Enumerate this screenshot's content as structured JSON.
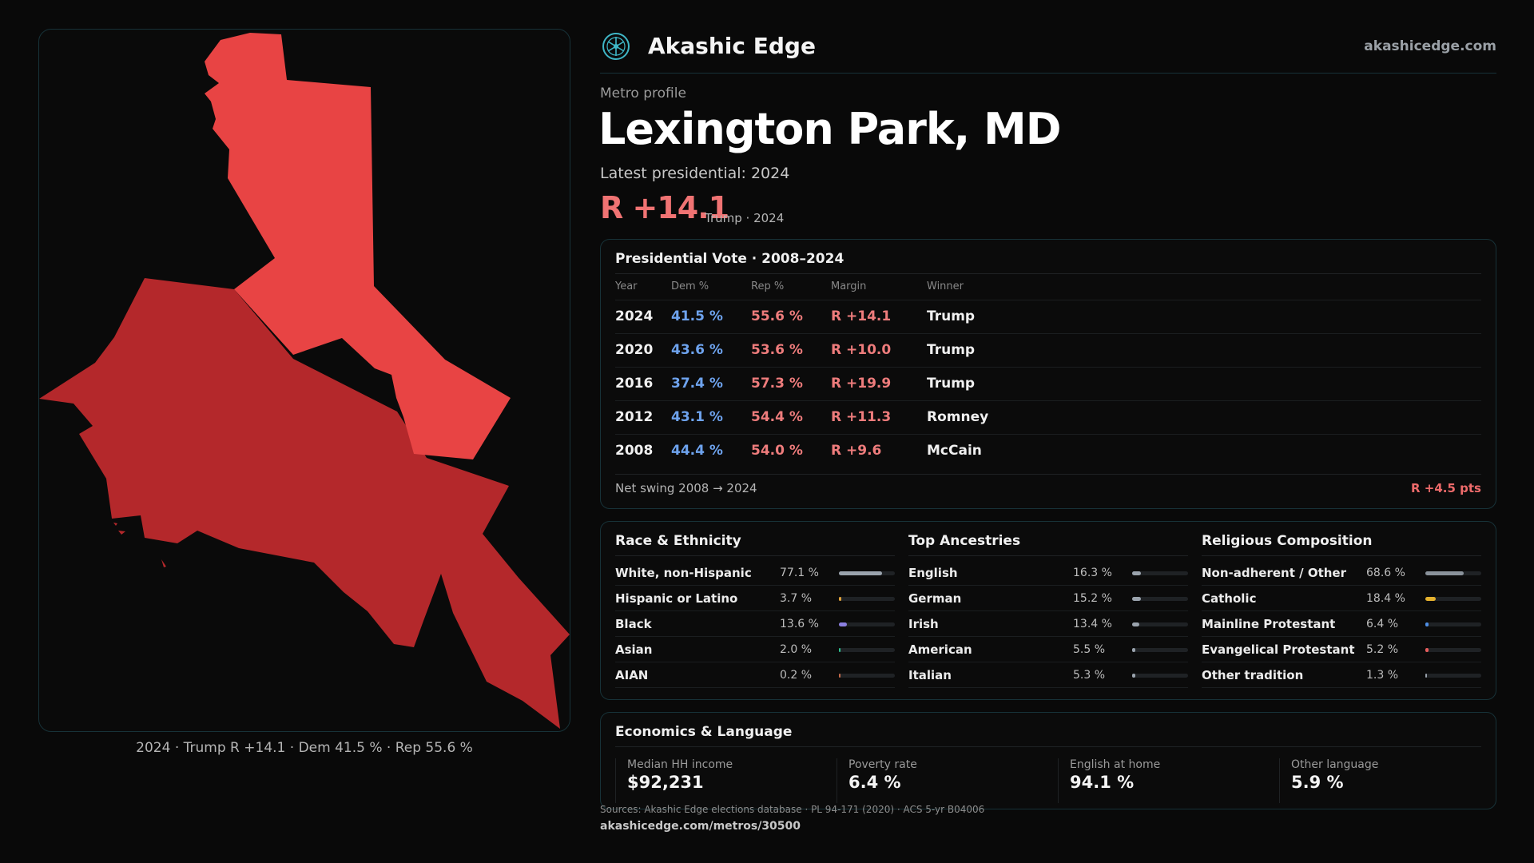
{
  "colors": {
    "background": "#090909",
    "border": "#173238",
    "dem": "#6ea3ee",
    "rep": "#ee7c7c",
    "map_light": "#e84444",
    "map_dark": "#b4282b"
  },
  "header": {
    "logo_icon": "akashic-edge-logo-icon",
    "brand": "Akashic Edge",
    "site": "akashicedge.com"
  },
  "profile": {
    "eyebrow": "Metro profile",
    "title": "Lexington Park, MD",
    "latest": "Latest presidential: 2024",
    "margin": "R +14.1",
    "margin_sub": "Trump · 2024"
  },
  "map": {
    "caption": "2024 · Trump R +14.1 · Dem 41.5 % · Rep 55.6 %"
  },
  "vote": {
    "title": "Presidential Vote · 2008–2024",
    "headers": {
      "year": "Year",
      "dem": "Dem %",
      "rep": "Rep %",
      "margin": "Margin",
      "winner": "Winner"
    },
    "rows": [
      {
        "year": "2024",
        "dem": "41.5 %",
        "rep": "55.6 %",
        "margin": "R +14.1",
        "winner": "Trump"
      },
      {
        "year": "2020",
        "dem": "43.6 %",
        "rep": "53.6 %",
        "margin": "R +10.0",
        "winner": "Trump"
      },
      {
        "year": "2016",
        "dem": "37.4 %",
        "rep": "57.3 %",
        "margin": "R +19.9",
        "winner": "Trump"
      },
      {
        "year": "2012",
        "dem": "43.1 %",
        "rep": "54.4 %",
        "margin": "R +11.3",
        "winner": "Romney"
      },
      {
        "year": "2008",
        "dem": "44.4 %",
        "rep": "54.0 %",
        "margin": "R +9.6",
        "winner": "McCain"
      }
    ],
    "swing_label": "Net swing 2008 → 2024",
    "swing_value": "R +4.5 pts"
  },
  "demographics": {
    "race": {
      "title": "Race & Ethnicity",
      "items": [
        {
          "label": "White, non-Hispanic",
          "value": "77.1 %",
          "pct": 77.1,
          "color": "#9aa3ad"
        },
        {
          "label": "Hispanic or Latino",
          "value": "3.7 %",
          "pct": 3.7,
          "color": "#e0a23a"
        },
        {
          "label": "Black",
          "value": "13.6 %",
          "pct": 13.6,
          "color": "#8b7fe0"
        },
        {
          "label": "Asian",
          "value": "2.0 %",
          "pct": 2.0,
          "color": "#2fbf8f"
        },
        {
          "label": "AIAN",
          "value": "0.2 %",
          "pct": 0.2,
          "color": "#c46a4a"
        }
      ]
    },
    "ancestry": {
      "title": "Top Ancestries",
      "items": [
        {
          "label": "English",
          "value": "16.3 %",
          "pct": 16.3,
          "color": "#9aa3ad"
        },
        {
          "label": "German",
          "value": "15.2 %",
          "pct": 15.2,
          "color": "#9aa3ad"
        },
        {
          "label": "Irish",
          "value": "13.4 %",
          "pct": 13.4,
          "color": "#9aa3ad"
        },
        {
          "label": "American",
          "value": "5.5 %",
          "pct": 5.5,
          "color": "#9aa3ad"
        },
        {
          "label": "Italian",
          "value": "5.3 %",
          "pct": 5.3,
          "color": "#9aa3ad"
        }
      ]
    },
    "religion": {
      "title": "Religious Composition",
      "items": [
        {
          "label": "Non-adherent / Other",
          "value": "68.6 %",
          "pct": 68.6,
          "color": "#8a929b"
        },
        {
          "label": "Catholic",
          "value": "18.4 %",
          "pct": 18.4,
          "color": "#e5b22e"
        },
        {
          "label": "Mainline Protestant",
          "value": "6.4 %",
          "pct": 6.4,
          "color": "#4f8fe6"
        },
        {
          "label": "Evangelical Protestant",
          "value": "5.2 %",
          "pct": 5.2,
          "color": "#e85d5d"
        },
        {
          "label": "Other tradition",
          "value": "1.3 %",
          "pct": 1.3,
          "color": "#9aa3ad"
        }
      ]
    }
  },
  "economics": {
    "title": "Economics & Language",
    "items": [
      {
        "label": "Median HH income",
        "value": "$92,231"
      },
      {
        "label": "Poverty rate",
        "value": "6.4 %"
      },
      {
        "label": "English at home",
        "value": "94.1 %"
      },
      {
        "label": "Other language",
        "value": "5.9 %"
      }
    ]
  },
  "footer": {
    "sources": "Sources: Akashic Edge elections database · PL 94-171 (2020) · ACS 5-yr B04006",
    "url": "akashicedge.com/metros/30500"
  }
}
